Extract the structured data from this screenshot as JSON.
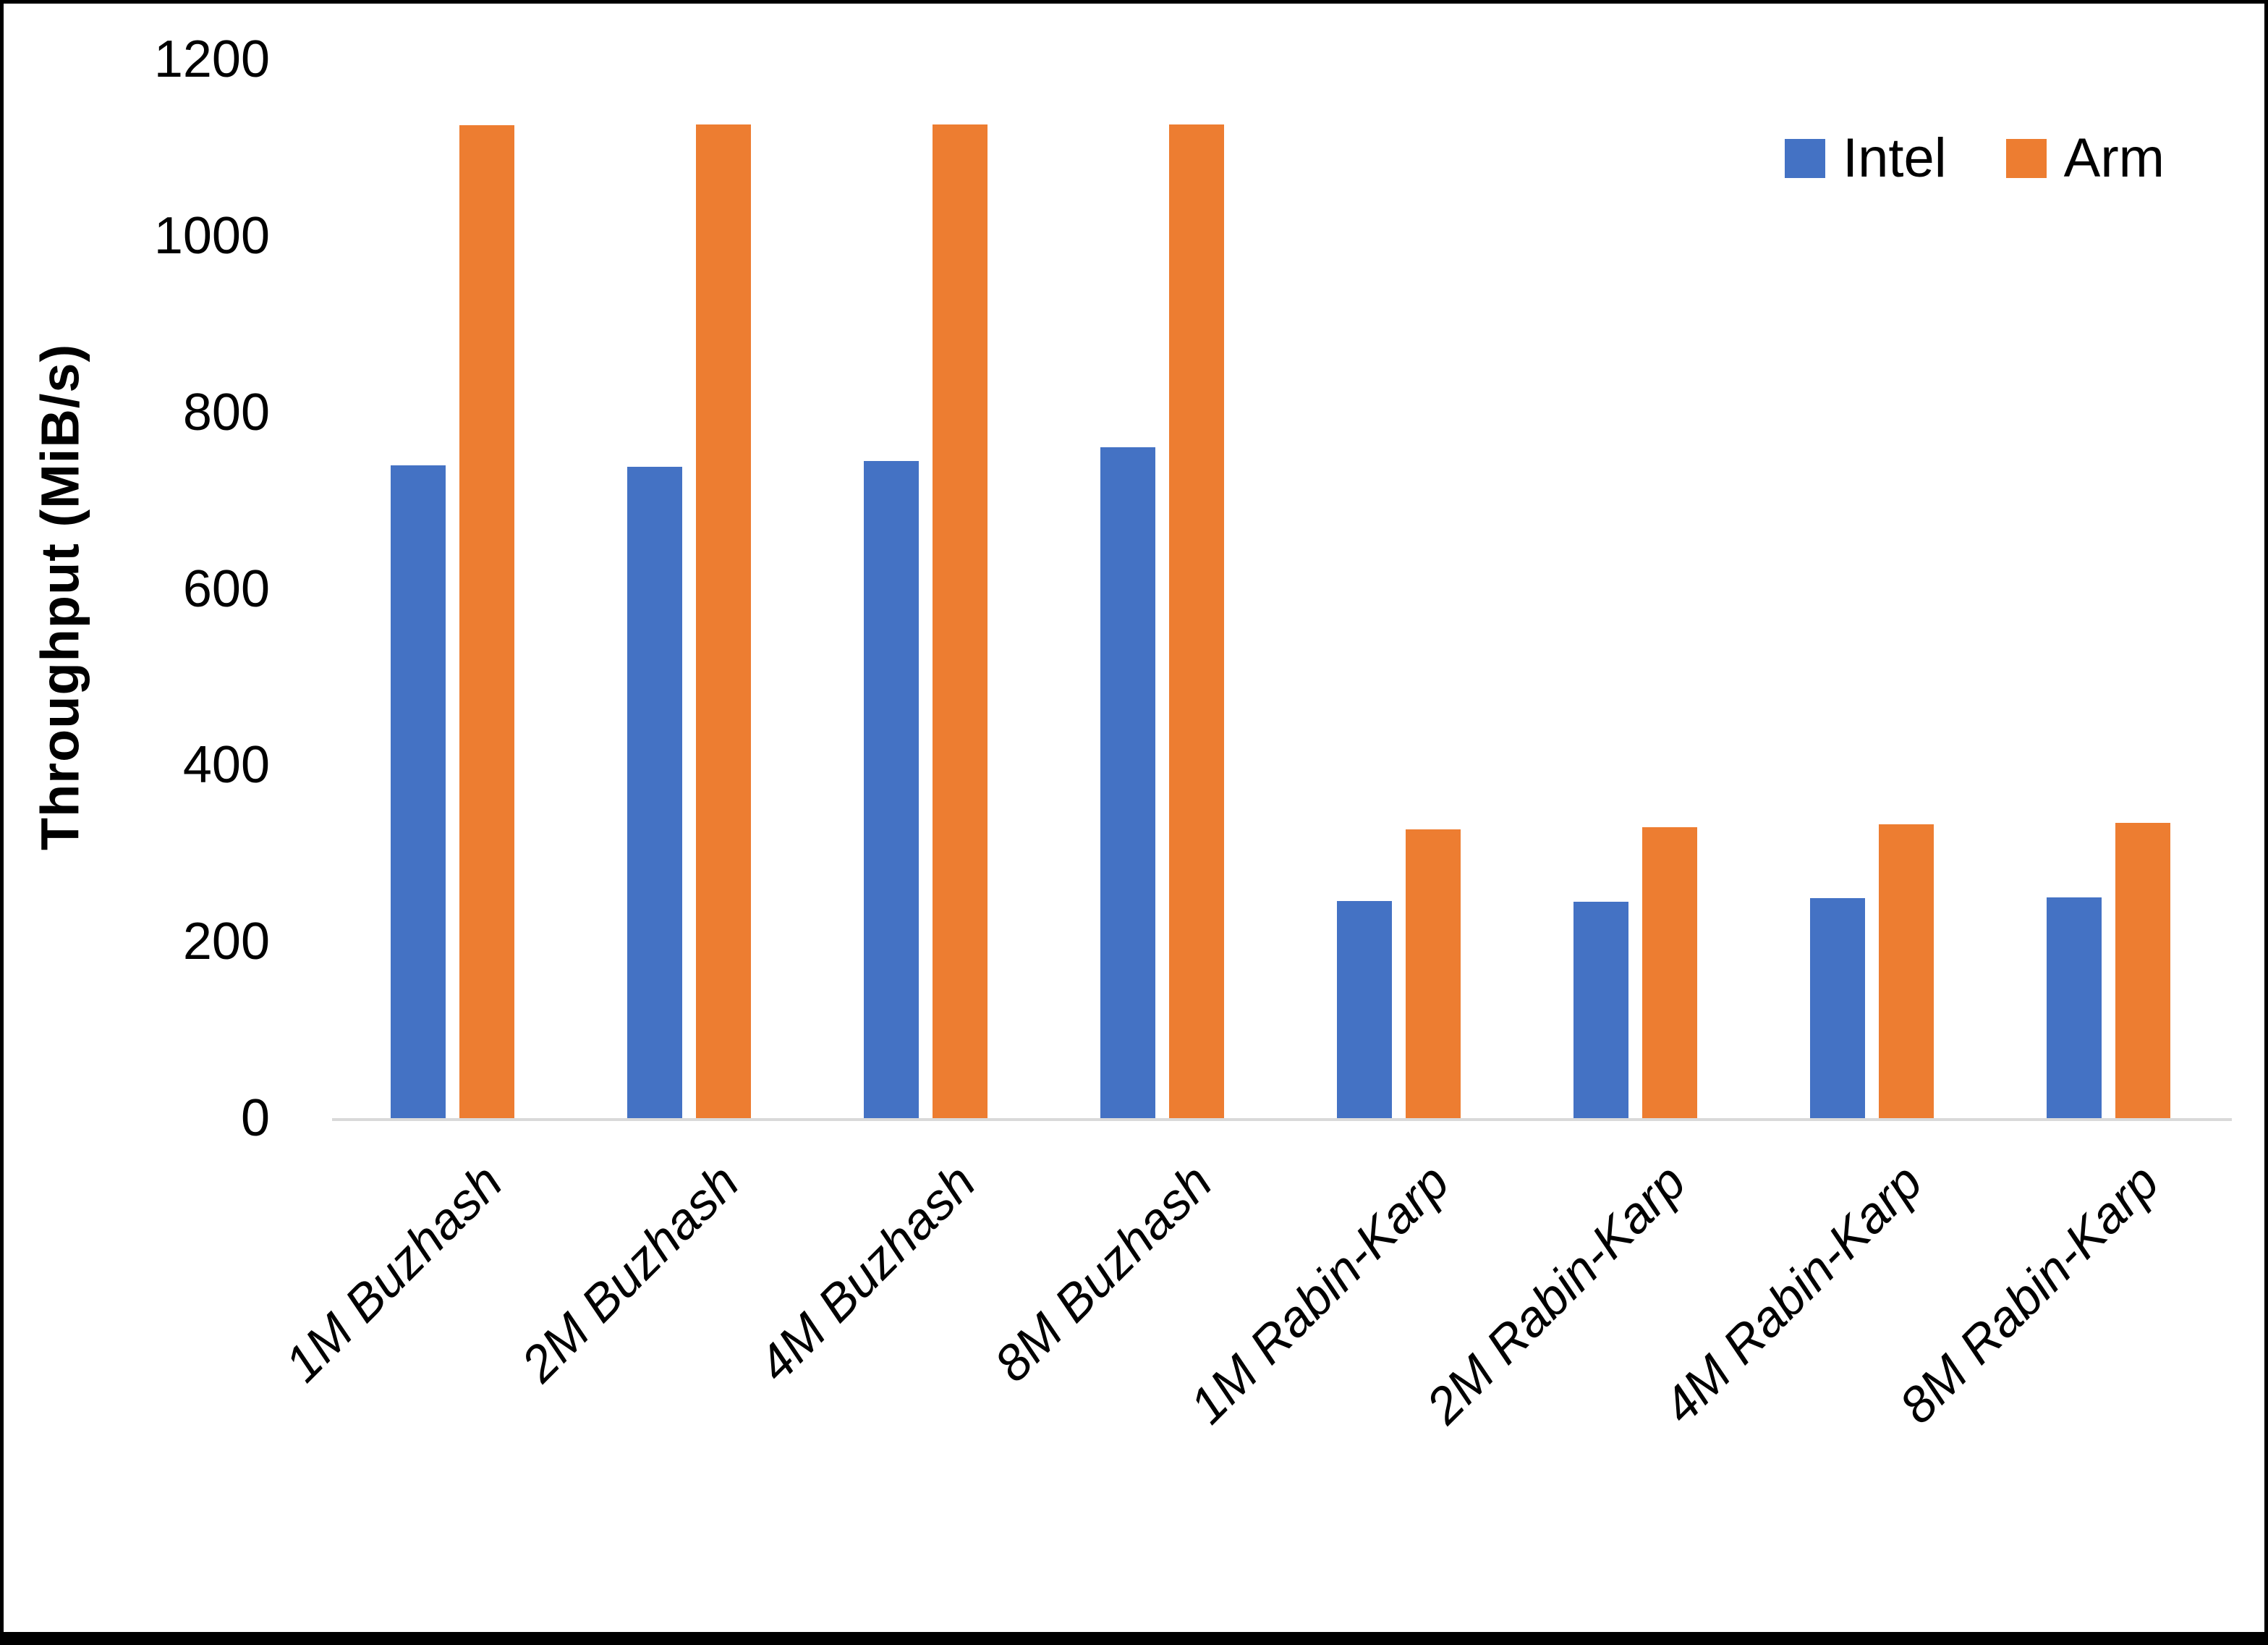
{
  "chart_data": {
    "type": "bar",
    "title": "",
    "xlabel": "",
    "ylabel": "Throughput (MiB/s)",
    "ylim": [
      0,
      1200
    ],
    "yticks": [
      0,
      200,
      400,
      600,
      800,
      1000,
      1200
    ],
    "grid": false,
    "legend_position": "top-right",
    "categories": [
      "1M Buzhash",
      "2M Buzhash",
      "4M Buzhash",
      "8M Buzhash",
      "1M Rabin-Karp",
      "2M Rabin-Karp",
      "4M Rabin-Karp",
      "8M Rabin-Karp"
    ],
    "series": [
      {
        "name": "Intel",
        "color": "#4472C4",
        "values": [
          740,
          738,
          745,
          760,
          246,
          245,
          249,
          250
        ]
      },
      {
        "name": "Arm",
        "color": "#ED7D31",
        "values": [
          1125,
          1126,
          1126,
          1126,
          327,
          330,
          333,
          335
        ]
      }
    ]
  },
  "colors": {
    "axis_line": "#d9d9d9",
    "text": "#000000",
    "background": "#ffffff",
    "border": "#000000"
  }
}
